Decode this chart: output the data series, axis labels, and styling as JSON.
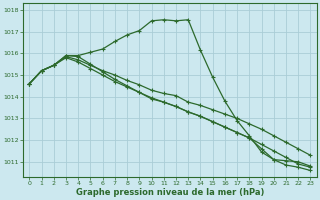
{
  "background_color": "#cce8ef",
  "grid_color": "#aacdd6",
  "line_color": "#2d6a2d",
  "xlabel": "Graphe pression niveau de la mer (hPa)",
  "ylim": [
    1010.3,
    1018.3
  ],
  "xlim": [
    -0.5,
    23.5
  ],
  "yticks": [
    1011,
    1012,
    1013,
    1014,
    1015,
    1016,
    1017,
    1018
  ],
  "xticks": [
    0,
    1,
    2,
    3,
    4,
    5,
    6,
    7,
    8,
    9,
    10,
    11,
    12,
    13,
    14,
    15,
    16,
    17,
    18,
    19,
    20,
    21,
    22,
    23
  ],
  "series_peak": {
    "x": [
      0,
      1,
      2,
      3,
      4,
      5,
      6,
      7,
      8,
      9,
      10,
      11,
      12,
      13,
      14,
      15,
      16,
      17,
      18,
      19,
      20,
      21,
      22,
      23
    ],
    "y": [
      1014.6,
      1015.2,
      1015.45,
      1015.9,
      1015.9,
      1016.05,
      1016.2,
      1016.55,
      1016.85,
      1017.05,
      1017.5,
      1017.55,
      1017.5,
      1017.55,
      1016.15,
      1014.9,
      1013.8,
      1012.9,
      1012.2,
      1011.45,
      1011.1,
      1011.05,
      1011.0,
      1010.8
    ]
  },
  "series_mid1": {
    "x": [
      0,
      1,
      2,
      3,
      4,
      5,
      6,
      7,
      8,
      9,
      10,
      11,
      12,
      13,
      14,
      15,
      16,
      17,
      18,
      19,
      20,
      21,
      22,
      23
    ],
    "y": [
      1014.6,
      1015.2,
      1015.45,
      1015.85,
      1015.7,
      1015.45,
      1015.2,
      1015.0,
      1014.75,
      1014.55,
      1014.3,
      1014.15,
      1014.05,
      1013.75,
      1013.6,
      1013.4,
      1013.2,
      1013.0,
      1012.75,
      1012.5,
      1012.2,
      1011.9,
      1011.6,
      1011.3
    ]
  },
  "series_mid2": {
    "x": [
      0,
      1,
      2,
      3,
      4,
      5,
      6,
      7,
      8,
      9,
      10,
      11,
      12,
      13,
      14,
      15,
      16,
      17,
      18,
      19,
      20,
      21,
      22,
      23
    ],
    "y": [
      1014.6,
      1015.2,
      1015.45,
      1015.8,
      1015.6,
      1015.3,
      1015.0,
      1014.7,
      1014.45,
      1014.2,
      1013.9,
      1013.75,
      1013.55,
      1013.3,
      1013.1,
      1012.85,
      1012.6,
      1012.35,
      1012.1,
      1011.8,
      1011.5,
      1011.2,
      1010.9,
      1010.75
    ]
  },
  "series_low": {
    "x": [
      0,
      1,
      2,
      3,
      4,
      5,
      6,
      7,
      8,
      9,
      10,
      11,
      12,
      13,
      14,
      15,
      16,
      17,
      18,
      19,
      20,
      21,
      22,
      23
    ],
    "y": [
      1014.6,
      1015.2,
      1015.45,
      1015.9,
      1015.85,
      1015.5,
      1015.15,
      1014.8,
      1014.5,
      1014.2,
      1013.95,
      1013.75,
      1013.55,
      1013.3,
      1013.1,
      1012.85,
      1012.6,
      1012.35,
      1012.1,
      1011.6,
      1011.1,
      1010.85,
      1010.75,
      1010.6
    ]
  }
}
